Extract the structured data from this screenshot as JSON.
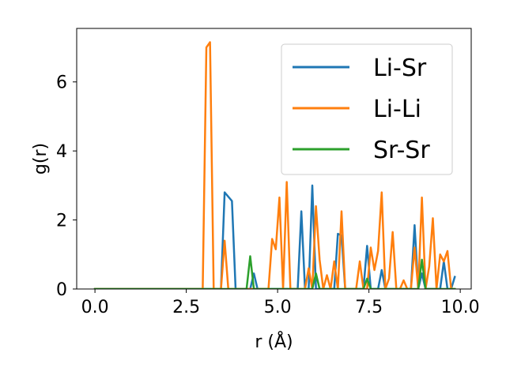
{
  "chart_data": {
    "type": "line",
    "title": "",
    "xlabel": "r (Å)",
    "ylabel": "g(r)",
    "xlim": [
      -0.5,
      10.3
    ],
    "ylim": [
      0,
      7.55
    ],
    "xticks": [
      0.0,
      2.5,
      5.0,
      7.5,
      10.0
    ],
    "xtick_labels": [
      "0.0",
      "2.5",
      "5.0",
      "7.5",
      "10.0"
    ],
    "yticks": [
      0,
      2,
      4,
      6
    ],
    "ytick_labels": [
      "0",
      "2",
      "4",
      "6"
    ],
    "grid": false,
    "legend_position": "top-right",
    "series": [
      {
        "name": "Li-Sr",
        "color": "#1f77b4",
        "x": [
          0.0,
          3.45,
          3.55,
          3.75,
          3.85,
          4.25,
          4.35,
          4.45,
          5.55,
          5.65,
          5.75,
          5.85,
          5.95,
          6.05,
          6.55,
          6.65,
          6.75,
          6.85,
          7.35,
          7.45,
          7.55,
          7.75,
          7.85,
          7.95,
          8.05,
          8.65,
          8.75,
          8.85,
          8.95,
          9.05,
          9.15,
          9.45,
          9.55,
          9.65,
          9.75,
          9.85
        ],
        "y": [
          0.0,
          0.0,
          2.8,
          2.55,
          0.0,
          0.0,
          0.45,
          0.0,
          0.0,
          2.25,
          0.0,
          0.0,
          3.0,
          0.0,
          0.0,
          1.6,
          1.55,
          0.0,
          0.0,
          1.25,
          0.0,
          0.0,
          0.55,
          0.0,
          0.0,
          0.0,
          1.85,
          0.0,
          0.45,
          0.0,
          0.0,
          0.0,
          0.8,
          0.0,
          0.0,
          0.35
        ]
      },
      {
        "name": "Li-Li",
        "color": "#ff7f0e",
        "x": [
          0.0,
          2.95,
          3.05,
          3.15,
          3.25,
          3.45,
          3.55,
          3.65,
          4.75,
          4.85,
          4.95,
          5.05,
          5.15,
          5.25,
          5.35,
          5.65,
          5.75,
          5.85,
          5.95,
          6.05,
          6.15,
          6.25,
          6.35,
          6.45,
          6.55,
          6.65,
          6.75,
          6.85,
          6.95,
          7.05,
          7.15,
          7.25,
          7.35,
          7.45,
          7.55,
          7.65,
          7.75,
          7.85,
          7.95,
          8.05,
          8.15,
          8.25,
          8.35,
          8.45,
          8.55,
          8.65,
          8.75,
          8.85,
          8.95,
          9.05,
          9.15,
          9.25,
          9.35,
          9.45,
          9.55,
          9.65,
          9.75,
          9.85
        ],
        "y": [
          0.0,
          0.0,
          7.0,
          7.15,
          0.0,
          0.0,
          1.4,
          0.0,
          0.0,
          1.45,
          1.15,
          2.65,
          0.0,
          3.1,
          0.0,
          0.0,
          0.0,
          0.6,
          0.0,
          2.4,
          0.85,
          0.0,
          0.4,
          0.0,
          0.8,
          0.0,
          2.25,
          0.0,
          0.0,
          0.0,
          0.0,
          0.8,
          0.0,
          0.0,
          1.2,
          0.55,
          1.1,
          2.8,
          0.0,
          0.3,
          1.65,
          0.0,
          0.0,
          0.25,
          0.0,
          0.0,
          1.2,
          0.0,
          2.65,
          0.0,
          0.65,
          2.05,
          0.0,
          1.0,
          0.8,
          1.1,
          0.0,
          0.0
        ]
      },
      {
        "name": "Sr-Sr",
        "color": "#2ca02c",
        "x": [
          0.0,
          4.15,
          4.25,
          4.35,
          5.85,
          5.95,
          6.05,
          6.15,
          6.25,
          7.25,
          7.35,
          7.45,
          7.55,
          8.85,
          8.95,
          9.05,
          9.85
        ],
        "y": [
          0.0,
          0.0,
          0.95,
          0.0,
          0.0,
          0.0,
          0.45,
          0.0,
          0.0,
          0.0,
          0.0,
          0.3,
          0.0,
          0.0,
          0.85,
          0.0,
          0.0
        ]
      }
    ]
  }
}
